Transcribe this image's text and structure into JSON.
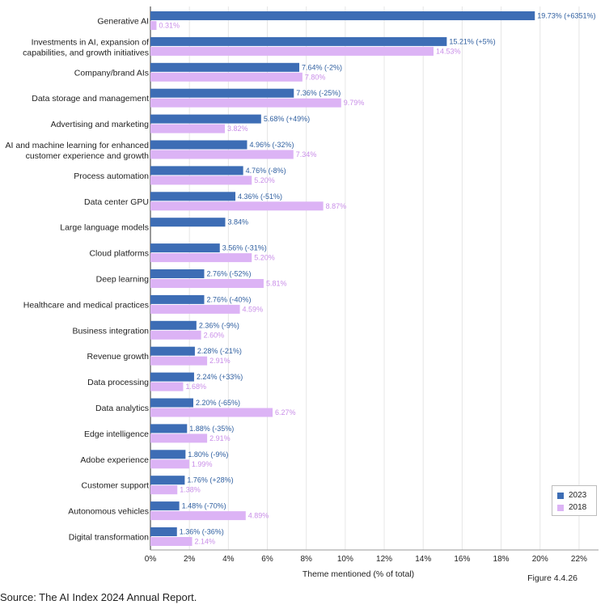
{
  "chart_data": {
    "type": "bar",
    "orientation": "horizontal",
    "categories": [
      "Generative AI",
      "Investments in AI, expansion of capabilities, and growth initiatives",
      "Company/brand AIs",
      "Data storage and management",
      "Advertising and marketing",
      "AI and machine learning for enhanced customer experience and growth",
      "Process automation",
      "Data center GPU",
      "Large language models",
      "Cloud platforms",
      "Deep learning",
      "Healthcare and medical practices",
      "Business integration",
      "Revenue growth",
      "Data processing",
      "Data analytics",
      "Edge intelligence",
      "Adobe experience",
      "Customer support",
      "Autonomous vehicles",
      "Digital transformation"
    ],
    "category_lines": [
      [
        "Generative AI"
      ],
      [
        "Investments in AI, expansion of",
        "capabilities, and growth initiatives"
      ],
      [
        "Company/brand AIs"
      ],
      [
        "Data storage and management"
      ],
      [
        "Advertising and marketing"
      ],
      [
        "AI and machine learning for enhanced",
        "customer experience and growth"
      ],
      [
        "Process automation"
      ],
      [
        "Data center GPU"
      ],
      [
        "Large language models"
      ],
      [
        "Cloud platforms"
      ],
      [
        "Deep learning"
      ],
      [
        "Healthcare and medical practices"
      ],
      [
        "Business integration"
      ],
      [
        "Revenue growth"
      ],
      [
        "Data processing"
      ],
      [
        "Data analytics"
      ],
      [
        "Edge intelligence"
      ],
      [
        "Adobe experience"
      ],
      [
        "Customer support"
      ],
      [
        "Autonomous vehicles"
      ],
      [
        "Digital transformation"
      ]
    ],
    "series": [
      {
        "name": "2023",
        "color": "#3d6db5",
        "values": [
          19.73,
          15.21,
          7.64,
          7.36,
          5.68,
          4.96,
          4.76,
          4.36,
          3.84,
          3.56,
          2.76,
          2.76,
          2.36,
          2.28,
          2.24,
          2.2,
          1.88,
          1.8,
          1.76,
          1.48,
          1.36
        ],
        "labels": [
          "19.73% (+6351%)",
          "15.21% (+5%)",
          "7.64% (-2%)",
          "7.36% (-25%)",
          "5.68% (+49%)",
          "4.96% (-32%)",
          "4.76% (-8%)",
          "4.36% (-51%)",
          "3.84%",
          "3.56% (-31%)",
          "2.76% (-52%)",
          "2.76% (-40%)",
          "2.36% (-9%)",
          "2.28% (-21%)",
          "2.24% (+33%)",
          "2.20% (-65%)",
          "1.88% (-35%)",
          "1.80% (-9%)",
          "1.76% (+28%)",
          "1.48% (-70%)",
          "1.36% (-36%)"
        ]
      },
      {
        "name": "2018",
        "color": "#dcb3f5",
        "values": [
          0.31,
          14.53,
          7.8,
          9.79,
          3.82,
          7.34,
          5.2,
          8.87,
          null,
          5.2,
          5.81,
          4.59,
          2.6,
          2.91,
          1.68,
          6.27,
          2.91,
          1.99,
          1.38,
          4.89,
          2.14
        ],
        "labels": [
          "0.31%",
          "14.53%",
          "7.80%",
          "9.79%",
          "3.82%",
          "7.34%",
          "5.20%",
          "8.87%",
          "",
          "5.20%",
          "5.81%",
          "4.59%",
          "2.60%",
          "2.91%",
          "1.68%",
          "6.27%",
          "2.91%",
          "1.99%",
          "1.38%",
          "4.89%",
          "2.14%"
        ]
      }
    ],
    "xticks": [
      "0%",
      "2%",
      "4%",
      "6%",
      "8%",
      "10%",
      "12%",
      "14%",
      "16%",
      "18%",
      "20%",
      "22%"
    ],
    "xlim": [
      0,
      23
    ],
    "xlabel": "Theme mentioned (% of total)",
    "grid": "vertical",
    "legend_position": "bottom-right"
  },
  "figure_label": "Figure 4.4.26",
  "source_text": "Source: The AI Index 2024 Annual Report.",
  "legend": {
    "items": [
      {
        "label": "2023",
        "color": "#3d6db5"
      },
      {
        "label": "2018",
        "color": "#dcb3f5"
      }
    ]
  }
}
